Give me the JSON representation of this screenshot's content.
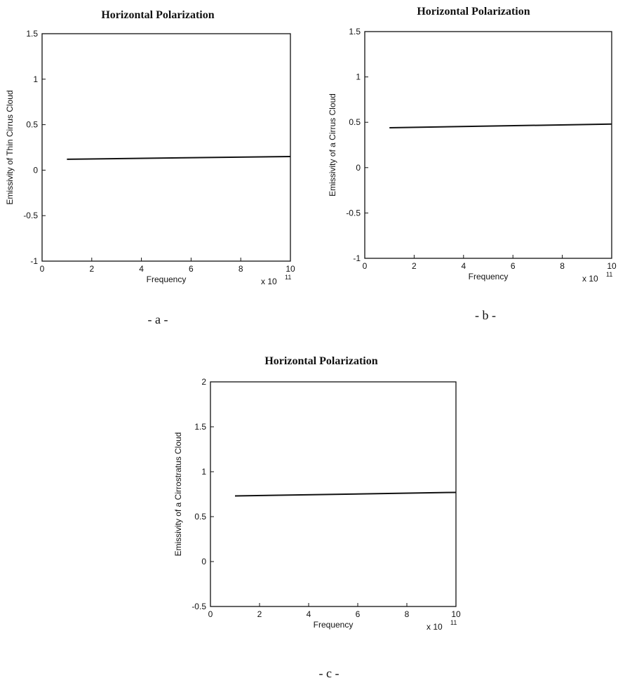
{
  "chart_data": [
    {
      "type": "line",
      "title": "Horizontal Polarization",
      "xlabel": "Frequency",
      "ylabel": "Emissivity of Thin Cirrus Cloud",
      "x_multiplier": "x 10",
      "x_multiplier_exp": "11",
      "xlim": [
        0,
        10
      ],
      "ylim": [
        -1,
        1.5
      ],
      "xticks": [
        "0",
        "2",
        "4",
        "6",
        "8",
        "10"
      ],
      "xtick_values": [
        0,
        2,
        4,
        6,
        8,
        10
      ],
      "yticks": [
        "-1",
        "-0.5",
        "0",
        "0.5",
        "1",
        "1.5"
      ],
      "ytick_values": [
        -1,
        -0.5,
        0,
        0.5,
        1,
        1.5
      ],
      "grid": false,
      "series": [
        {
          "x": [
            1,
            10
          ],
          "y": [
            0.12,
            0.15
          ]
        }
      ],
      "caption": "- a -"
    },
    {
      "type": "line",
      "title": "Horizontal Polarization",
      "xlabel": "Frequency",
      "ylabel": "Emissivity of a Cirrus Cloud",
      "x_multiplier": "x 10",
      "x_multiplier_exp": "11",
      "xlim": [
        0,
        10
      ],
      "ylim": [
        -1,
        1.5
      ],
      "xticks": [
        "0",
        "2",
        "4",
        "6",
        "8",
        "10"
      ],
      "xtick_values": [
        0,
        2,
        4,
        6,
        8,
        10
      ],
      "yticks": [
        "-1",
        "-0.5",
        "0",
        "0.5",
        "1",
        "1.5"
      ],
      "ytick_values": [
        -1,
        -0.5,
        0,
        0.5,
        1,
        1.5
      ],
      "grid": false,
      "series": [
        {
          "x": [
            1,
            10
          ],
          "y": [
            0.44,
            0.48
          ]
        }
      ],
      "caption": "- b -"
    },
    {
      "type": "line",
      "title": "Horizontal Polarization",
      "xlabel": "Frequency",
      "ylabel": "Emissivity of a Cirrostratus Cloud",
      "x_multiplier": "x 10",
      "x_multiplier_exp": "11",
      "xlim": [
        0,
        10
      ],
      "ylim": [
        -0.5,
        2
      ],
      "xticks": [
        "0",
        "2",
        "4",
        "6",
        "8",
        "10"
      ],
      "xtick_values": [
        0,
        2,
        4,
        6,
        8,
        10
      ],
      "yticks": [
        "-0.5",
        "0",
        "0.5",
        "1",
        "1.5",
        "2"
      ],
      "ytick_values": [
        -0.5,
        0,
        0.5,
        1,
        1.5,
        2
      ],
      "grid": false,
      "series": [
        {
          "x": [
            1,
            10
          ],
          "y": [
            0.73,
            0.77
          ]
        }
      ],
      "caption": "- c -"
    }
  ]
}
